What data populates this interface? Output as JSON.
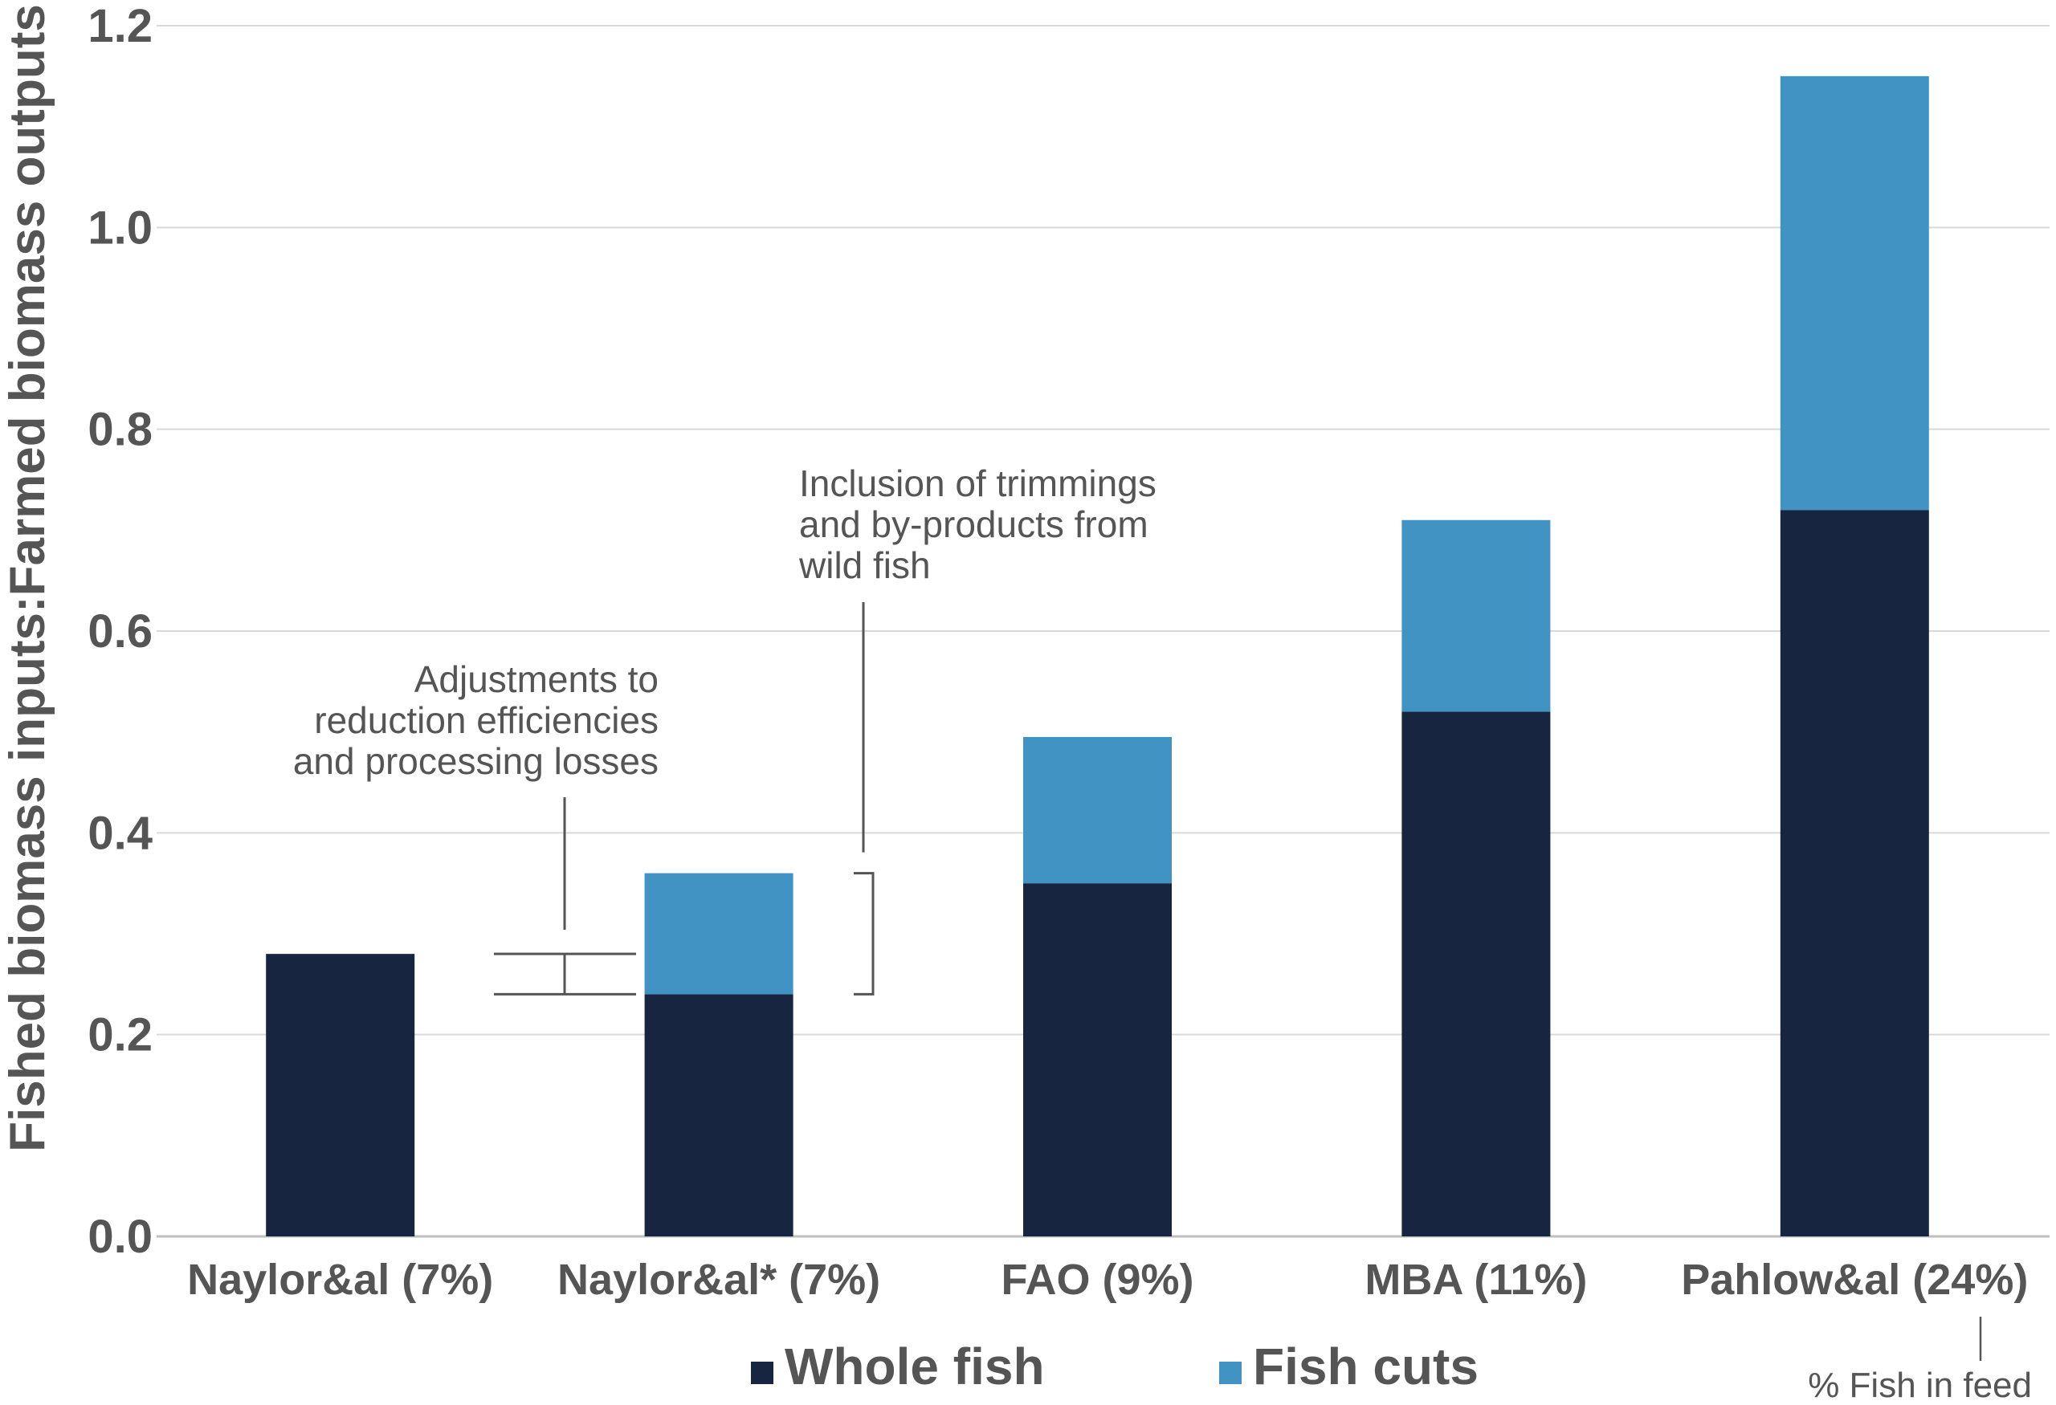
{
  "chart_data": {
    "type": "bar",
    "stacked": true,
    "categories": [
      "Naylor&al (7%)",
      "Naylor&al* (7%)",
      "FAO (9%)",
      "MBA (11%)",
      "Pahlow&al (24%)"
    ],
    "series": [
      {
        "name": "Whole fish",
        "values": [
          0.28,
          0.24,
          0.35,
          0.52,
          0.72
        ],
        "color": "#172540"
      },
      {
        "name": "Fish cuts",
        "values": [
          0.0,
          0.12,
          0.145,
          0.19,
          0.43
        ],
        "color": "#4193c4"
      }
    ],
    "title": "",
    "xlabel": "",
    "ylabel": "Fished biomass inputs:Farmed biomass outputs",
    "ylim": [
      0,
      1.2
    ],
    "yticks": [
      "0.0",
      "0.2",
      "0.4",
      "0.6",
      "0.8",
      "1.0",
      "1.2"
    ],
    "grid": true,
    "legend_position": "bottom",
    "annotations": {
      "adjustments": [
        "Adjustments to",
        "reduction efficiencies",
        "and processing losses"
      ],
      "inclusion": [
        "Inclusion of trimmings",
        "and by-products from",
        "wild fish"
      ],
      "fish_in_feed": "% Fish in feed"
    }
  }
}
